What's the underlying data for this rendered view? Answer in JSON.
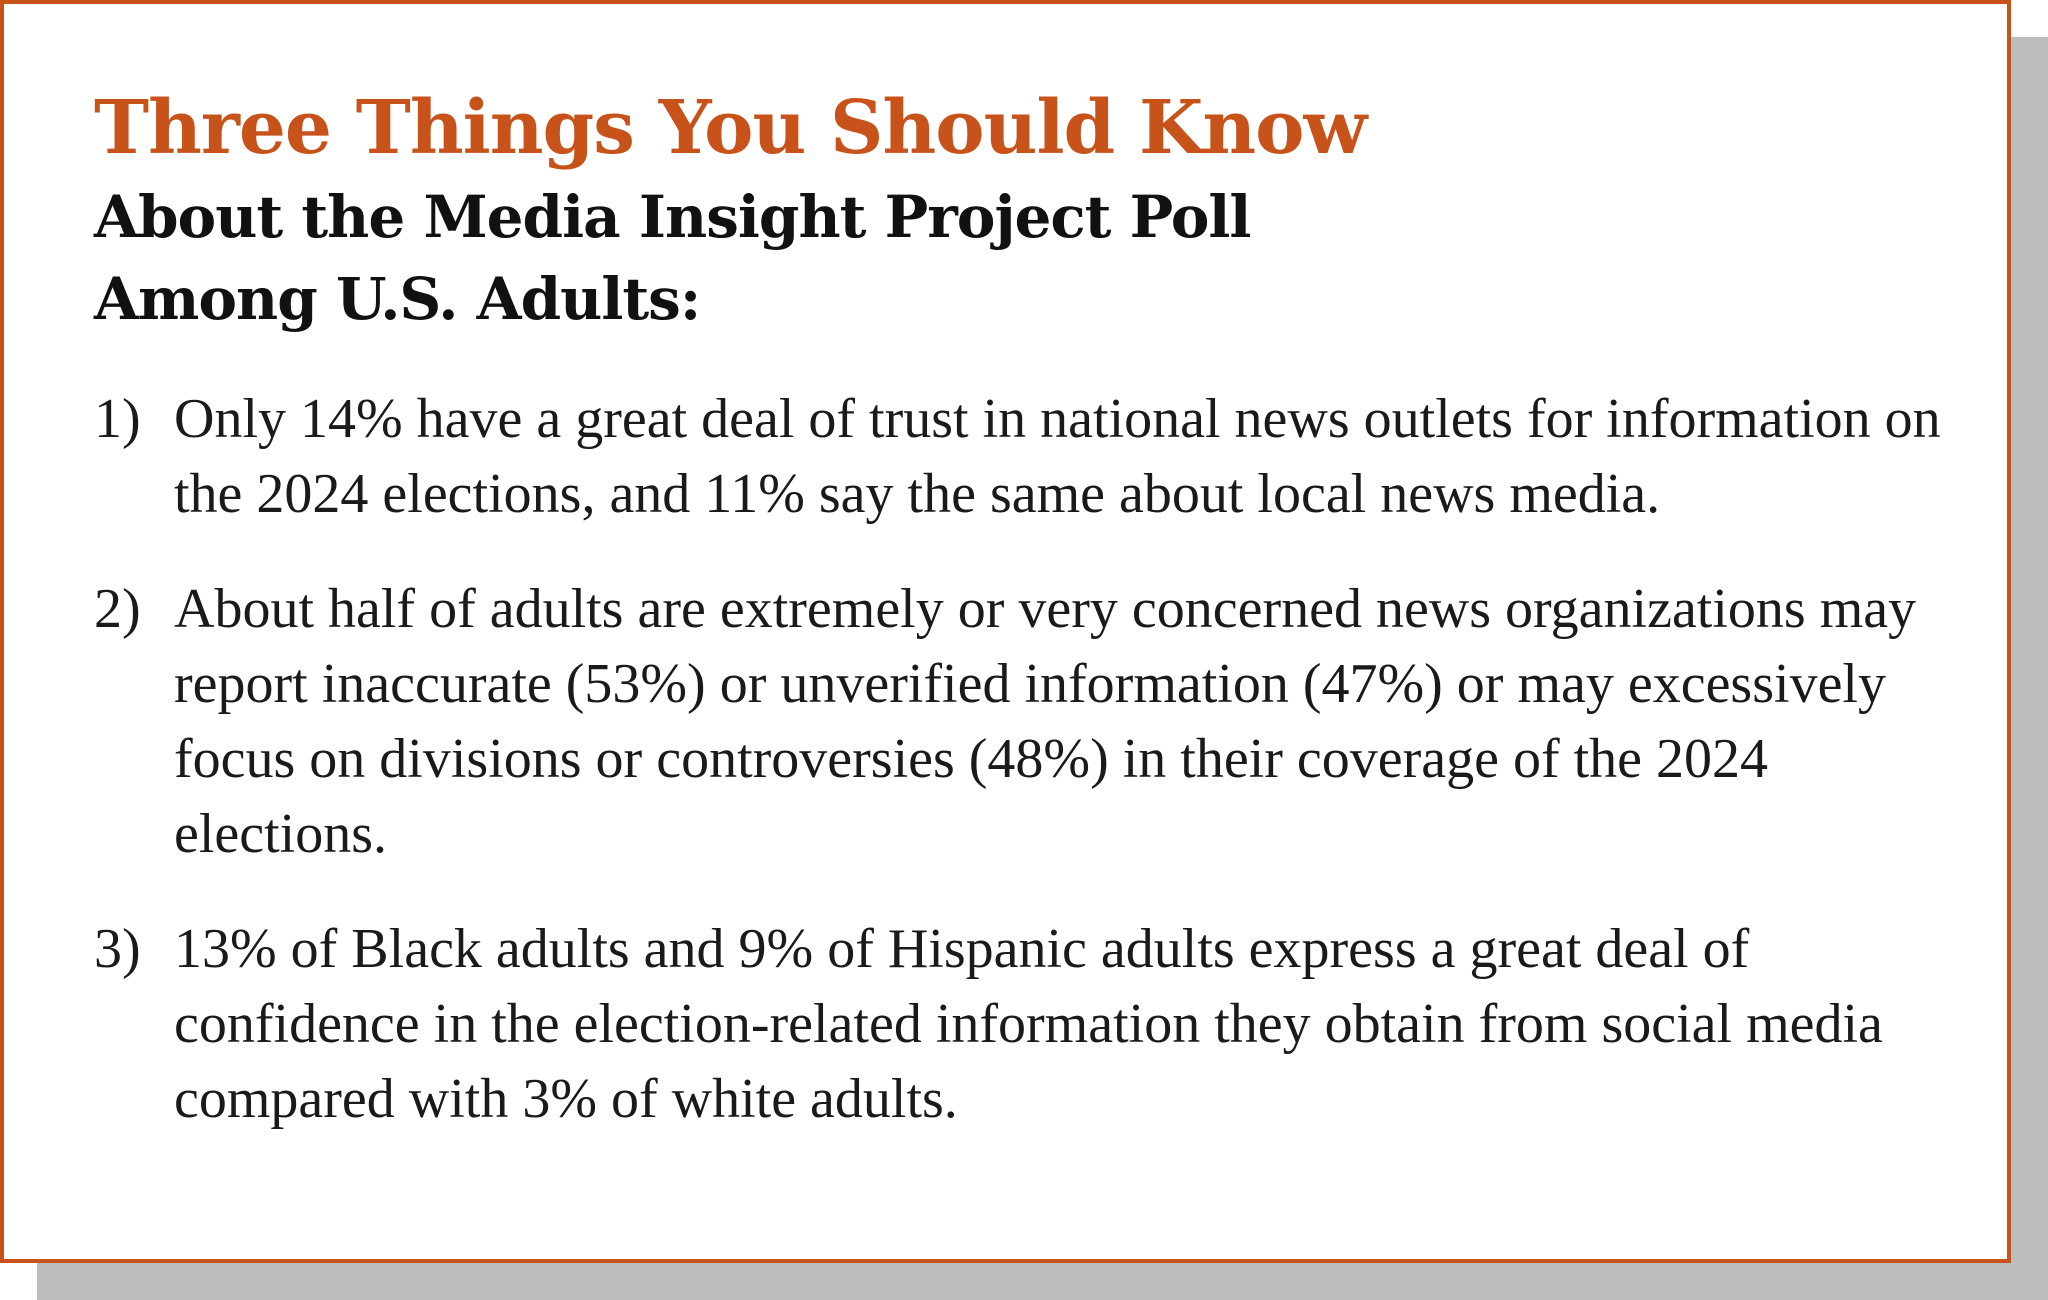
{
  "colors": {
    "accent": "#c7531b",
    "shadow": "#bcbcbc",
    "text": "#1a1a1a"
  },
  "header": {
    "title": "Three Things You Should Know",
    "subtitle_line1": "About the Media Insight Project Poll",
    "subtitle_line2": "Among U.S. Adults:"
  },
  "facts": [
    {
      "number": "1)",
      "text": "Only 14% have a great deal of trust in national news outlets for information on the 2024 elections, and 11% say the same about local news media."
    },
    {
      "number": "2)",
      "text": "About half of adults are extremely or very concerned news organizations may report inaccurate (53%) or unverified information (47%) or may excessively focus on divisions or controversies (48%) in their coverage of the 2024 elections."
    },
    {
      "number": "3)",
      "text": "13% of Black adults and 9% of Hispanic adults express a great deal of confidence in the election-related information they obtain from social media compared with 3% of white adults."
    }
  ]
}
